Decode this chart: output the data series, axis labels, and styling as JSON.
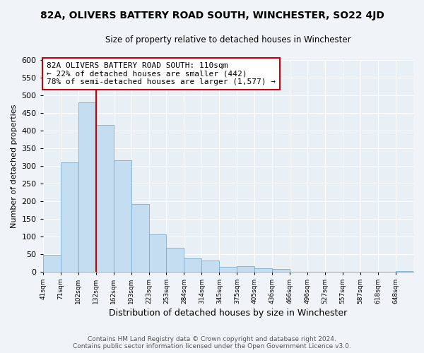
{
  "title": "82A, OLIVERS BATTERY ROAD SOUTH, WINCHESTER, SO22 4JD",
  "subtitle": "Size of property relative to detached houses in Winchester",
  "xlabel": "Distribution of detached houses by size in Winchester",
  "ylabel": "Number of detached properties",
  "bin_labels": [
    "41sqm",
    "71sqm",
    "102sqm",
    "132sqm",
    "162sqm",
    "193sqm",
    "223sqm",
    "253sqm",
    "284sqm",
    "314sqm",
    "345sqm",
    "375sqm",
    "405sqm",
    "436sqm",
    "466sqm",
    "496sqm",
    "527sqm",
    "557sqm",
    "587sqm",
    "618sqm",
    "648sqm"
  ],
  "bar_values": [
    48,
    310,
    480,
    415,
    315,
    192,
    105,
    68,
    37,
    32,
    14,
    15,
    10,
    7,
    0,
    0,
    0,
    0,
    0,
    0,
    1
  ],
  "bar_color": "#c5ddf0",
  "bar_edge_color": "#7aafd4",
  "vline_x": 2.0,
  "vline_color": "#cc0000",
  "annotation_box_text": "82A OLIVERS BATTERY ROAD SOUTH: 110sqm\n← 22% of detached houses are smaller (442)\n78% of semi-detached houses are larger (1,577) →",
  "annotation_box_edge_color": "#cc0000",
  "ylim": [
    0,
    600
  ],
  "yticks": [
    0,
    50,
    100,
    150,
    200,
    250,
    300,
    350,
    400,
    450,
    500,
    550,
    600
  ],
  "footer_line1": "Contains HM Land Registry data © Crown copyright and database right 2024.",
  "footer_line2": "Contains public sector information licensed under the Open Government Licence v3.0.",
  "background_color": "#f0f4f8",
  "plot_background": "#e8eff5",
  "grid_color": "#ffffff",
  "title_fontsize": 10,
  "subtitle_fontsize": 8.5,
  "ylabel_fontsize": 8,
  "xlabel_fontsize": 9
}
